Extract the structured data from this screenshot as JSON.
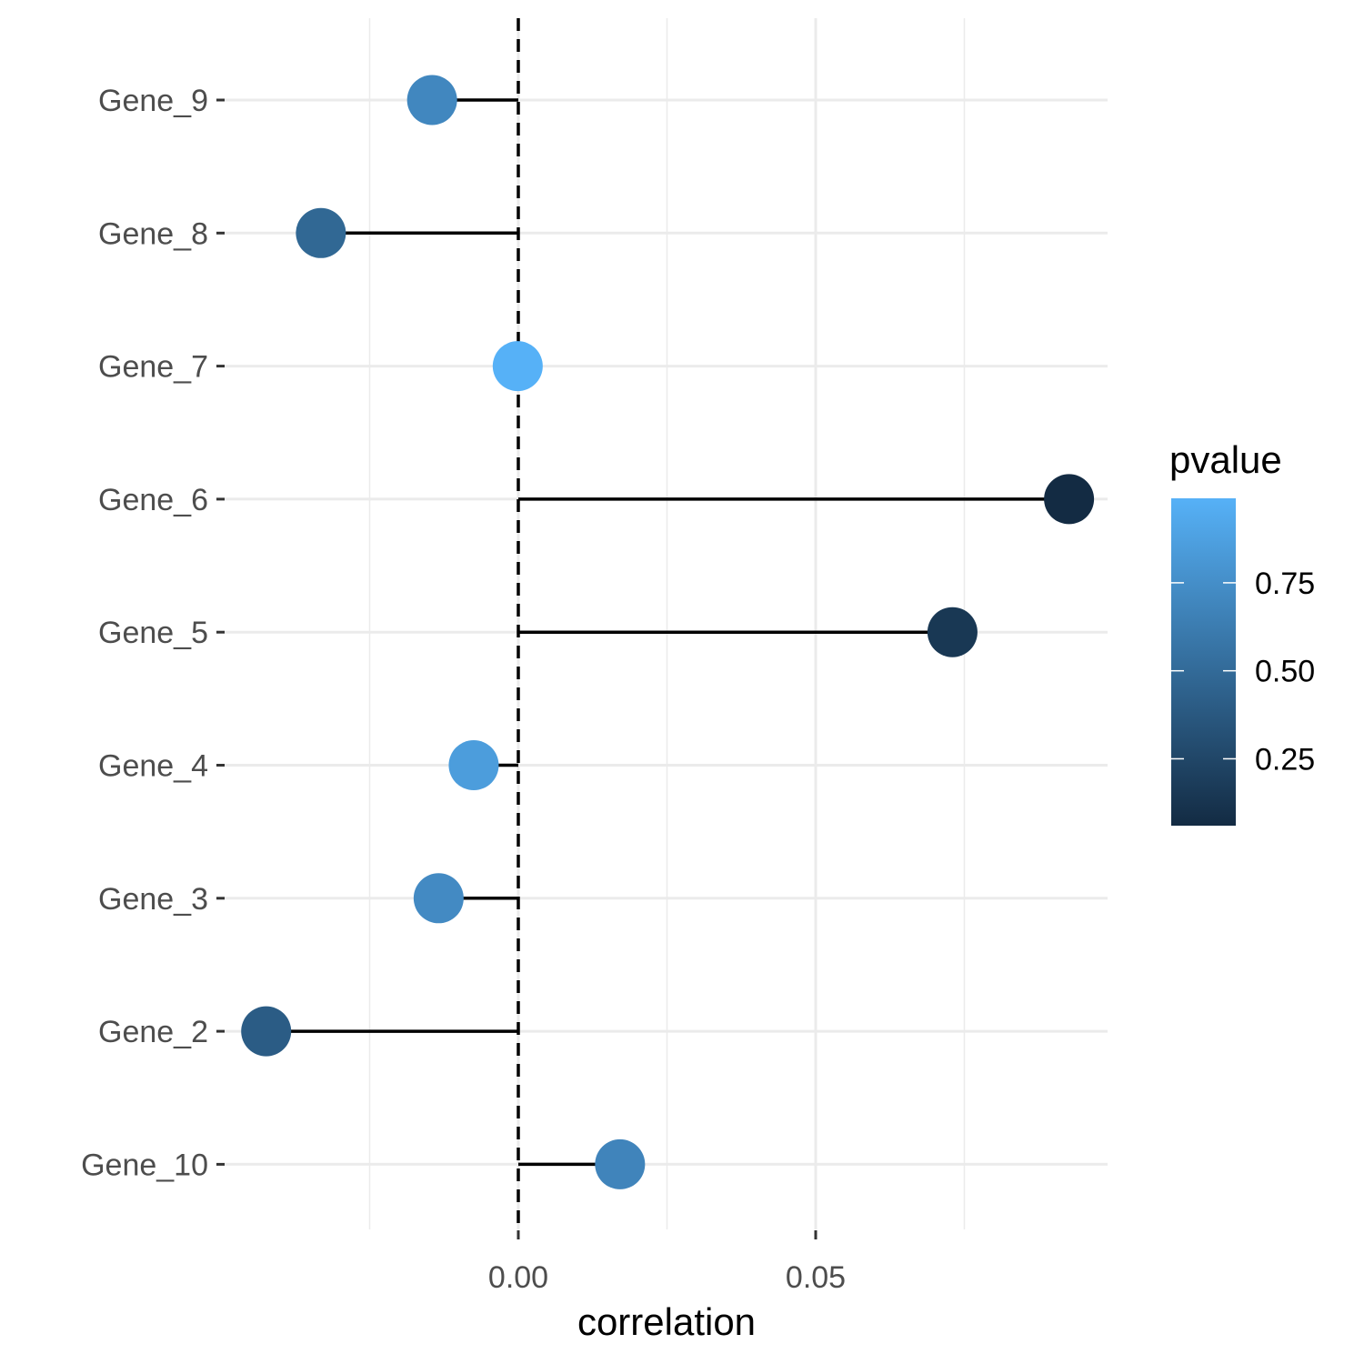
{
  "chart_data": {
    "type": "lollipop",
    "xlabel": "correlation",
    "ylabel": "",
    "xlim": [
      -0.0428,
      0.0998
    ],
    "x_ticks": [
      0.0,
      0.05
    ],
    "x_tick_labels": [
      "0.00",
      "0.05"
    ],
    "x_minor_gridlines": [
      -0.025,
      0.025,
      0.075
    ],
    "reference_line": {
      "x": 0.0,
      "style": "dashed"
    },
    "grid": true,
    "categories": [
      "Gene_9",
      "Gene_8",
      "Gene_7",
      "Gene_6",
      "Gene_5",
      "Gene_4",
      "Gene_3",
      "Gene_2",
      "Gene_10"
    ],
    "points": [
      {
        "gene": "Gene_9",
        "correlation": -0.0145,
        "pvalue": 0.7
      },
      {
        "gene": "Gene_8",
        "correlation": -0.0332,
        "pvalue": 0.48
      },
      {
        "gene": "Gene_7",
        "correlation": -0.0001,
        "pvalue": 0.99
      },
      {
        "gene": "Gene_6",
        "correlation": 0.0926,
        "pvalue": 0.06
      },
      {
        "gene": "Gene_5",
        "correlation": 0.073,
        "pvalue": 0.15
      },
      {
        "gene": "Gene_4",
        "correlation": -0.0075,
        "pvalue": 0.85
      },
      {
        "gene": "Gene_3",
        "correlation": -0.0134,
        "pvalue": 0.72
      },
      {
        "gene": "Gene_2",
        "correlation": -0.0424,
        "pvalue": 0.4
      },
      {
        "gene": "Gene_10",
        "correlation": 0.0171,
        "pvalue": 0.68
      }
    ],
    "legend": {
      "title": "pvalue",
      "placement": "right",
      "ticks": [
        0.25,
        0.5,
        0.75
      ],
      "tick_labels": [
        "0.25",
        "0.50",
        "0.75"
      ],
      "range": [
        0.06,
        0.99
      ],
      "color_low": "#132b43",
      "color_high": "#56b1f7"
    }
  }
}
